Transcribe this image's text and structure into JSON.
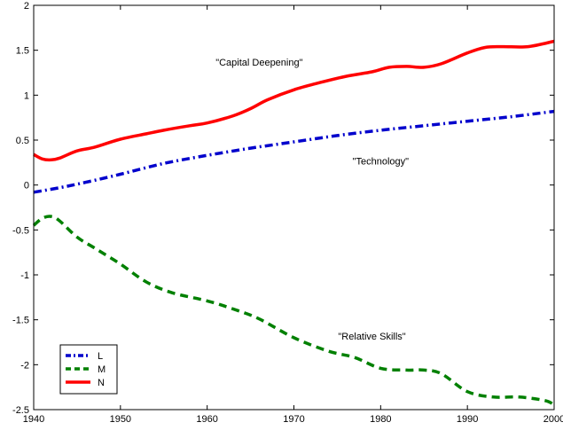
{
  "chart_data": {
    "type": "line",
    "title": "",
    "xlabel": "",
    "ylabel": "",
    "xlim": [
      1940,
      2000
    ],
    "ylim": [
      -2.5,
      2
    ],
    "x_ticks": [
      1940,
      1950,
      1960,
      1970,
      1980,
      1990,
      2000
    ],
    "y_ticks": [
      2,
      1.5,
      1,
      0.5,
      0,
      -0.5,
      -1,
      -1.5,
      -2,
      -2.5
    ],
    "grid": false,
    "legend_position": "bottom-left",
    "series": [
      {
        "name": "L",
        "color": "#0000cc",
        "style": "dash-dot",
        "x": [
          1940,
          1943,
          1946,
          1950,
          1955,
          1960,
          1965,
          1970,
          1975,
          1980,
          1985,
          1990,
          1995,
          2000
        ],
        "y": [
          -0.08,
          -0.03,
          0.03,
          0.12,
          0.24,
          0.33,
          0.41,
          0.48,
          0.55,
          0.61,
          0.66,
          0.71,
          0.76,
          0.82
        ]
      },
      {
        "name": "M",
        "color": "#008000",
        "style": "dashed",
        "x": [
          1940,
          1941,
          1942,
          1943,
          1945,
          1947,
          1950,
          1953,
          1956,
          1960,
          1963,
          1966,
          1970,
          1974,
          1977,
          1980,
          1983,
          1985,
          1987,
          1990,
          1993,
          1996,
          1999,
          2000
        ],
        "y": [
          -0.45,
          -0.37,
          -0.35,
          -0.4,
          -0.58,
          -0.7,
          -0.88,
          -1.08,
          -1.2,
          -1.29,
          -1.38,
          -1.49,
          -1.7,
          -1.85,
          -1.92,
          -2.04,
          -2.06,
          -2.06,
          -2.1,
          -2.3,
          -2.36,
          -2.36,
          -2.4,
          -2.45
        ]
      },
      {
        "name": "N",
        "color": "#ff0000",
        "style": "solid",
        "x": [
          1940,
          1941,
          1942,
          1943,
          1945,
          1947,
          1950,
          1953,
          1955,
          1958,
          1960,
          1963,
          1965,
          1967,
          1970,
          1973,
          1976,
          1979,
          1981,
          1983,
          1985,
          1987,
          1990,
          1992,
          1994,
          1997,
          2000
        ],
        "y": [
          0.34,
          0.29,
          0.28,
          0.3,
          0.38,
          0.42,
          0.51,
          0.57,
          0.61,
          0.66,
          0.69,
          0.77,
          0.85,
          0.95,
          1.06,
          1.14,
          1.21,
          1.26,
          1.31,
          1.32,
          1.31,
          1.35,
          1.47,
          1.53,
          1.54,
          1.54,
          1.6
        ]
      }
    ],
    "annotations": [
      {
        "text": "\"Capital Deepening\"",
        "x": 1966,
        "y": 1.33
      },
      {
        "text": "\"Technology\"",
        "x": 1980,
        "y": 0.23
      },
      {
        "text": "\"Relative Skills\"",
        "x": 1979,
        "y": -1.72
      }
    ]
  }
}
